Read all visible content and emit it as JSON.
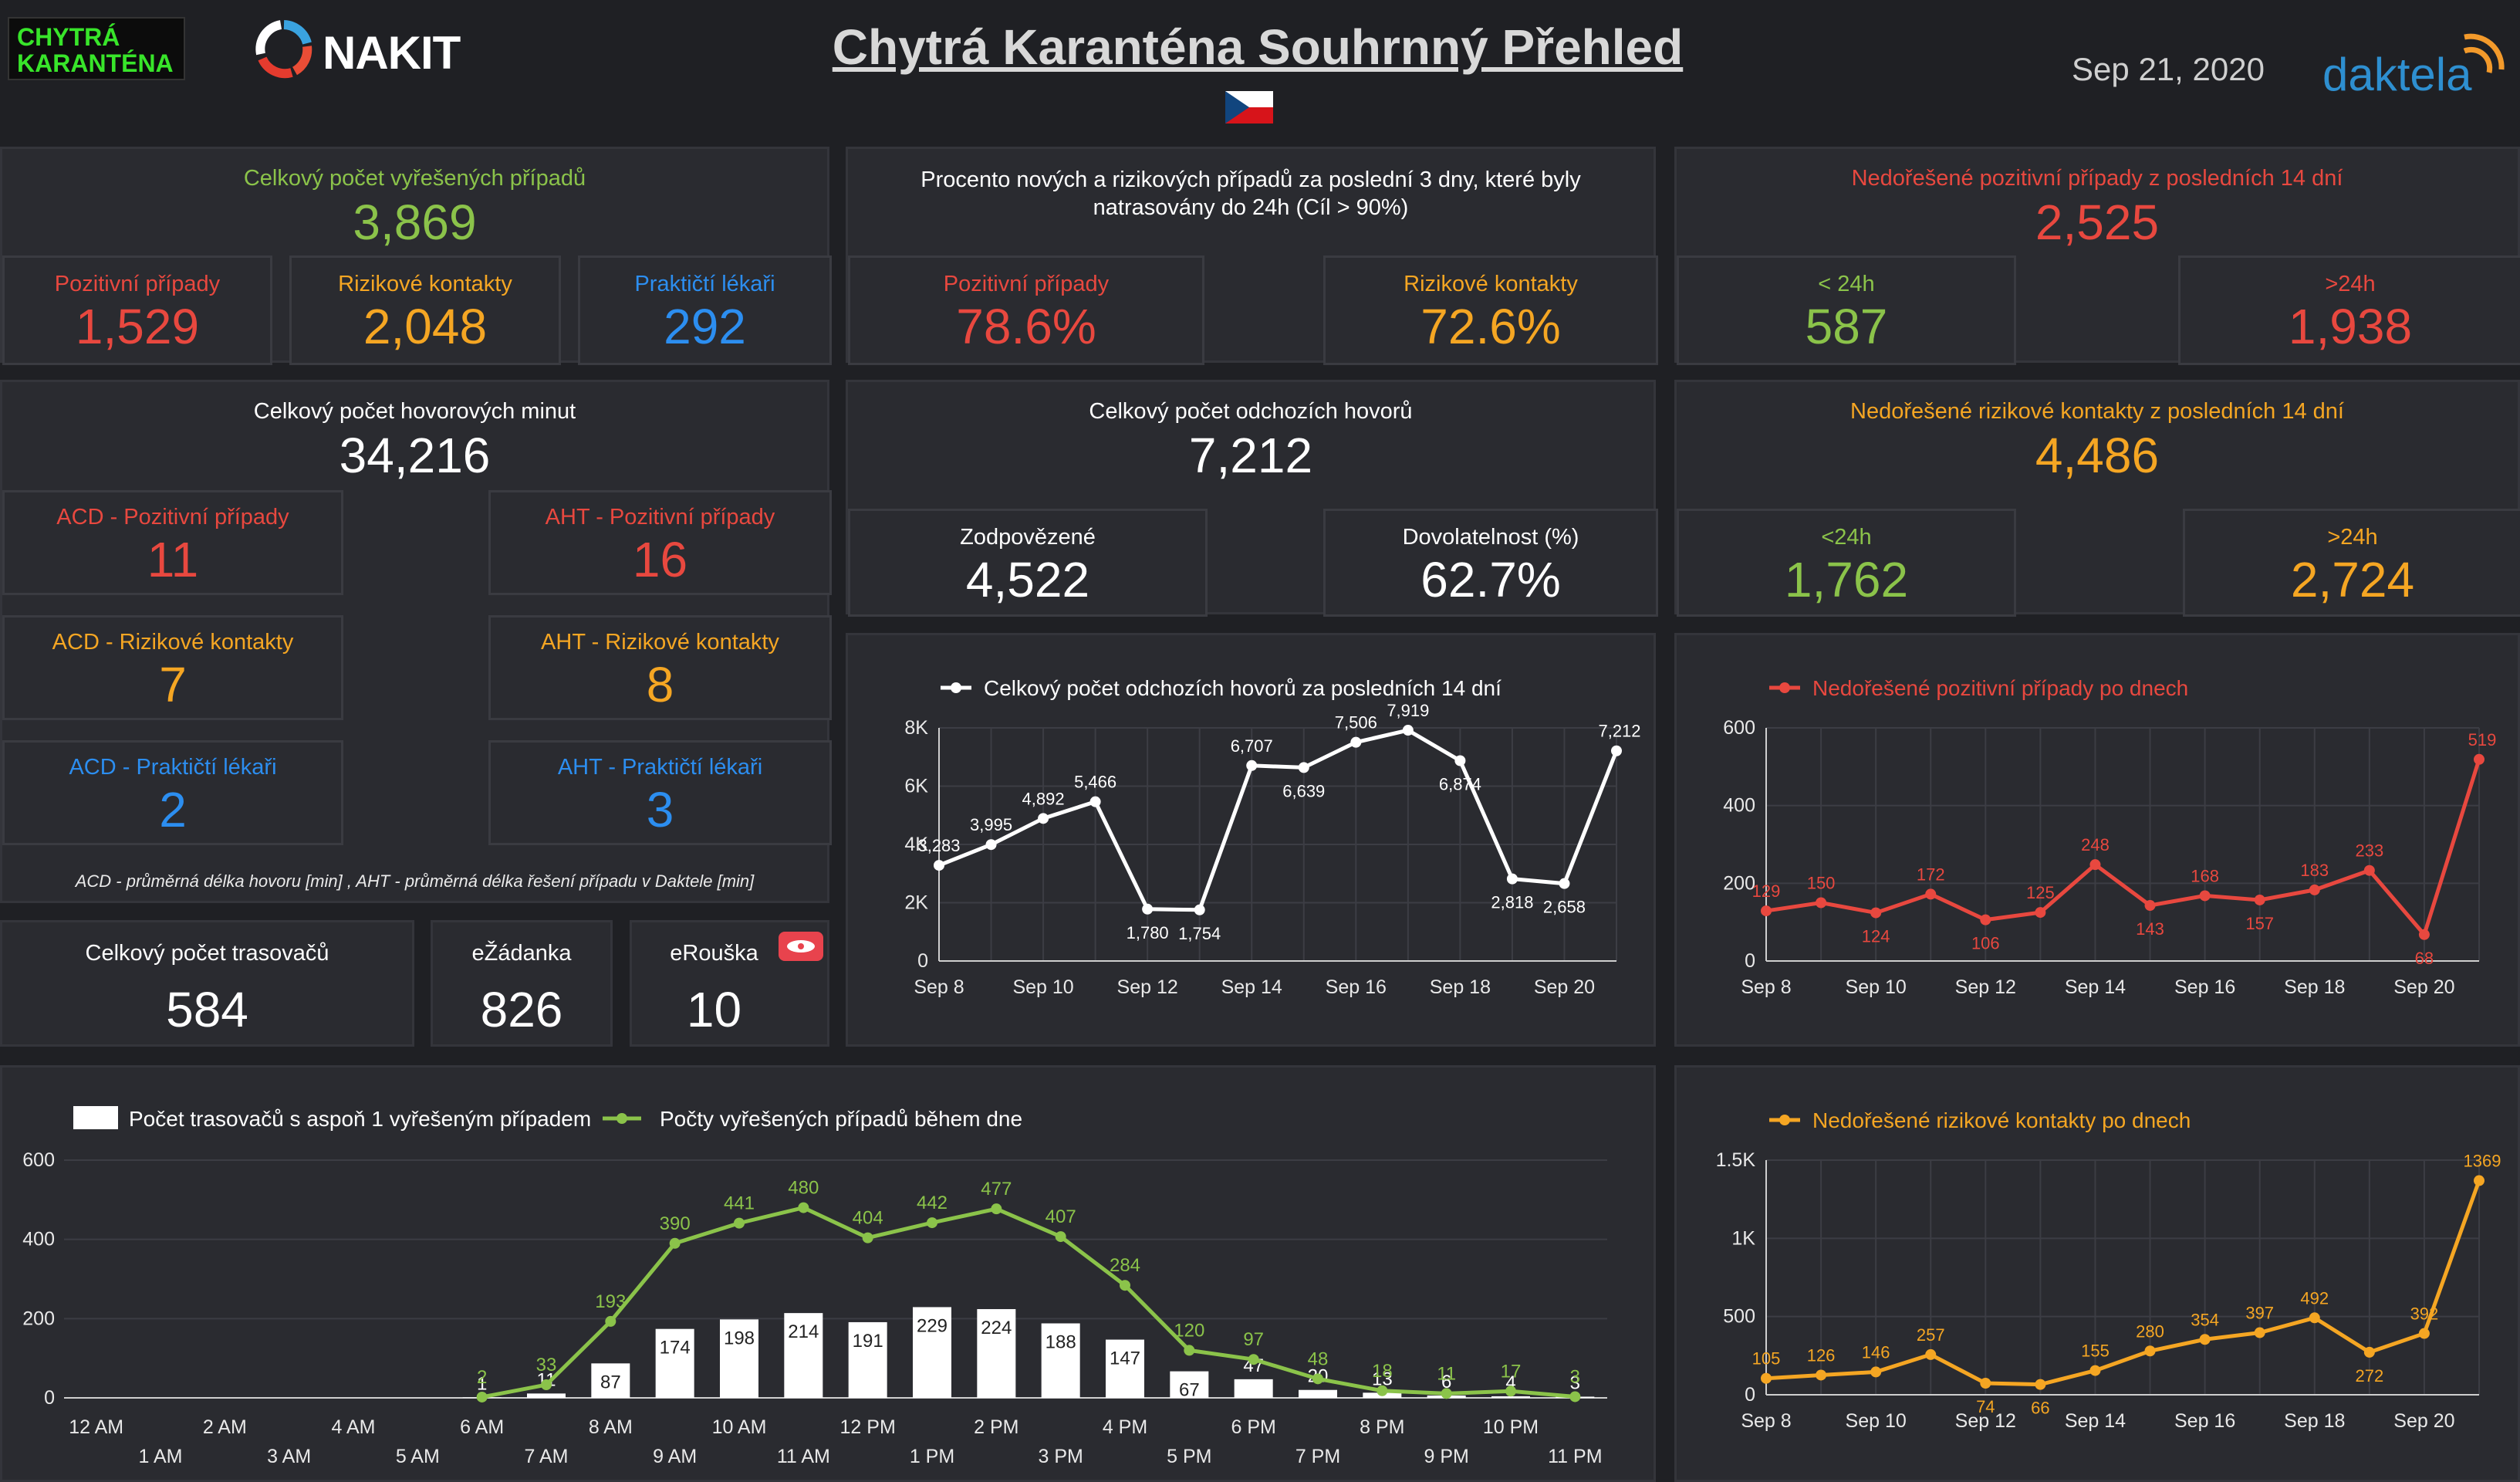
{
  "header": {
    "logo_left_line1": "CHYTRÁ",
    "logo_left_line2": "KARANTÉNA",
    "nakit_label": "NAKIT",
    "title": "Chytrá Karanténa Souhrnný Přehled",
    "date": "Sep 21, 2020",
    "daktela_label": "daktela"
  },
  "colors": {
    "red": "#e8483f",
    "orange": "#f5a623",
    "blue": "#2c8ef0",
    "green": "#8bc34a",
    "white": "#ffffff"
  },
  "resolved": {
    "title": "Celkový počet vyřešených případů",
    "total": "3,869",
    "positive_label": "Pozitivní případy",
    "positive": "1,529",
    "risk_label": "Rizikové kontakty",
    "risk": "2,048",
    "doctors_label": "Praktičtí lékaři",
    "doctors": "292"
  },
  "traced_percent": {
    "title": "Procento nových a rizikových případů za poslední 3 dny, které byly natrasovány do 24h (Cíl > 90%)",
    "positive_label": "Pozitivní případy",
    "positive": "78.6%",
    "risk_label": "Rizikové kontakty",
    "risk": "72.6%"
  },
  "unresolved_positive": {
    "title": "Nedořešené pozitivní případy z posledních 14 dní",
    "total": "2,525",
    "lt_label": "< 24h",
    "lt": "587",
    "gt_label": ">24h",
    "gt": "1,938"
  },
  "minutes": {
    "title": "Celkový počet hovorových minut",
    "total": "34,216",
    "acd_pos_label": "ACD - Pozitivní případy",
    "acd_pos": "11",
    "aht_pos_label": "AHT - Pozitivní případy",
    "aht_pos": "16",
    "acd_risk_label": "ACD - Rizikové kontakty",
    "acd_risk": "7",
    "aht_risk_label": "AHT - Rizikové kontakty",
    "aht_risk": "8",
    "acd_doc_label": "ACD - Praktičtí lékaři",
    "acd_doc": "2",
    "aht_doc_label": "AHT - Praktičtí lékaři",
    "aht_doc": "3",
    "note": "ACD - průměrná délka hovoru [min] , AHT - průměrná délka řešení případu v Daktele [min]"
  },
  "outgoing": {
    "title": "Celkový počet odchozích hovorů",
    "total": "7,212",
    "answered_label": "Zodpovězené",
    "answered": "4,522",
    "reach_label": "Dovolatelnost (%)",
    "reach": "62.7%"
  },
  "unresolved_risk": {
    "title": "Nedořešené rizikové kontakty z posledních 14 dní",
    "total": "4,486",
    "lt_label": "<24h",
    "lt": "1,762",
    "gt_label": ">24h",
    "gt": "2,724"
  },
  "tracers": {
    "total_label": "Celkový počet trasovačů",
    "total": "584",
    "ezadanka_label": "eŽádanka",
    "ezadanka": "826",
    "erouska_label": "eRouška",
    "erouska": "10"
  },
  "chart_data": [
    {
      "id": "outgoing-calls",
      "type": "line",
      "series": [
        {
          "name": "Celkový počet odchozích hovorů za posledních 14 dní",
          "color": "#ffffff",
          "values": [
            3283,
            3995,
            4892,
            5466,
            1780,
            1754,
            6707,
            6639,
            7506,
            7919,
            6874,
            2818,
            2658,
            7212
          ],
          "labels": [
            "3,283",
            "3,995",
            "4,892",
            "5,466",
            "1,780",
            "1,754",
            "6,707",
            "6,639",
            "7,506",
            "7,919",
            "6,874",
            "2,818",
            "2,658",
            "7,212"
          ]
        }
      ],
      "x": [
        "Sep 8",
        "Sep 9",
        "Sep 10",
        "Sep 11",
        "Sep 12",
        "Sep 13",
        "Sep 14",
        "Sep 15",
        "Sep 16",
        "Sep 17",
        "Sep 18",
        "Sep 19",
        "Sep 20",
        "Sep 21"
      ],
      "x_ticks": [
        "Sep 8",
        "Sep 10",
        "Sep 12",
        "Sep 14",
        "Sep 16",
        "Sep 18",
        "Sep 20"
      ],
      "y_ticks": [
        "0",
        "2K",
        "4K",
        "6K",
        "8K"
      ],
      "ylim": [
        0,
        8000
      ]
    },
    {
      "id": "unresolved-positive-daily",
      "type": "line",
      "series": [
        {
          "name": "Nedořešené pozitivní případy po dnech",
          "color": "#e8483f",
          "values": [
            129,
            150,
            124,
            172,
            106,
            125,
            248,
            143,
            168,
            157,
            183,
            233,
            68,
            519
          ],
          "labels": [
            "129",
            "150",
            "124",
            "172",
            "106",
            "125",
            "248",
            "143",
            "168",
            "157",
            "183",
            "233",
            "68",
            "519"
          ]
        }
      ],
      "x": [
        "Sep 8",
        "Sep 9",
        "Sep 10",
        "Sep 11",
        "Sep 12",
        "Sep 13",
        "Sep 14",
        "Sep 15",
        "Sep 16",
        "Sep 17",
        "Sep 18",
        "Sep 19",
        "Sep 20",
        "Sep 21"
      ],
      "x_ticks": [
        "Sep 8",
        "Sep 10",
        "Sep 12",
        "Sep 14",
        "Sep 16",
        "Sep 18",
        "Sep 20"
      ],
      "y_ticks": [
        "0",
        "200",
        "400",
        "600"
      ],
      "ylim": [
        0,
        600
      ]
    },
    {
      "id": "unresolved-risk-daily",
      "type": "line",
      "series": [
        {
          "name": "Nedořešené rizikové kontakty po dnech",
          "color": "#f5a623",
          "values": [
            105,
            126,
            146,
            257,
            74,
            66,
            155,
            280,
            354,
            397,
            492,
            272,
            392,
            1369
          ],
          "labels": [
            "105",
            "126",
            "146",
            "257",
            "74",
            "66",
            "155",
            "280",
            "354",
            "397",
            "492",
            "272",
            "392",
            "1369"
          ]
        }
      ],
      "x": [
        "Sep 8",
        "Sep 9",
        "Sep 10",
        "Sep 11",
        "Sep 12",
        "Sep 13",
        "Sep 14",
        "Sep 15",
        "Sep 16",
        "Sep 17",
        "Sep 18",
        "Sep 19",
        "Sep 20",
        "Sep 21"
      ],
      "x_ticks": [
        "Sep 8",
        "Sep 10",
        "Sep 12",
        "Sep 14",
        "Sep 16",
        "Sep 18",
        "Sep 20"
      ],
      "y_ticks": [
        "0",
        "500",
        "1K",
        "1.5K"
      ],
      "ylim": [
        0,
        1500
      ]
    },
    {
      "id": "hourly",
      "type": "bar",
      "x": [
        "12 AM",
        "1 AM",
        "2 AM",
        "3 AM",
        "4 AM",
        "5 AM",
        "6 AM",
        "7 AM",
        "8 AM",
        "9 AM",
        "10 AM",
        "11 AM",
        "12 PM",
        "1 PM",
        "2 PM",
        "3 PM",
        "4 PM",
        "5 PM",
        "6 PM",
        "7 PM",
        "8 PM",
        "9 PM",
        "10 PM",
        "11 PM"
      ],
      "series": [
        {
          "name": "Počet trasovačů s aspoň 1 vyřešeným případem",
          "type": "bar",
          "color": "#ffffff",
          "values": [
            null,
            null,
            null,
            null,
            null,
            null,
            1,
            11,
            87,
            174,
            198,
            214,
            191,
            229,
            224,
            188,
            147,
            67,
            47,
            20,
            13,
            6,
            4,
            3
          ],
          "labels": [
            "",
            "",
            "",
            "",
            "",
            "",
            "1",
            "11",
            "87",
            "174",
            "198",
            "214",
            "191",
            "229",
            "224",
            "188",
            "147",
            "67",
            "47",
            "20",
            "13",
            "6",
            "4",
            "3"
          ]
        },
        {
          "name": "Počty vyřešených případů během dne",
          "type": "line",
          "color": "#8bc34a",
          "values": [
            null,
            null,
            null,
            null,
            null,
            null,
            2,
            33,
            193,
            390,
            441,
            480,
            404,
            442,
            477,
            407,
            284,
            120,
            97,
            48,
            18,
            11,
            17,
            3
          ],
          "labels": [
            "",
            "",
            "",
            "",
            "",
            "",
            "2",
            "33",
            "193",
            "390",
            "441",
            "480",
            "404",
            "442",
            "477",
            "407",
            "284",
            "120",
            "97",
            "48",
            "18",
            "11",
            "17",
            "3"
          ]
        }
      ],
      "y_ticks": [
        "0",
        "200",
        "400",
        "600"
      ],
      "ylim": [
        0,
        600
      ]
    }
  ]
}
